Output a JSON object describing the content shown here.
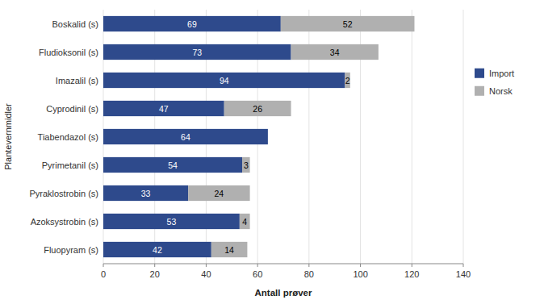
{
  "chart_data": {
    "type": "bar",
    "orientation": "horizontal",
    "stacked": true,
    "categories": [
      "Boskalid (s)",
      "Fludioksonil (s)",
      "Imazalil (s)",
      "Cyprodinil (s)",
      "Tiabendazol (s)",
      "Pyrimetanil (s)",
      "Pyraklostrobin (s)",
      "Azoksystrobin (s)",
      "Fluopyram (s)"
    ],
    "series": [
      {
        "name": "Import",
        "color": "#2E4A8C",
        "values": [
          69,
          73,
          94,
          47,
          64,
          54,
          33,
          53,
          42
        ]
      },
      {
        "name": "Norsk",
        "color": "#B0B0B0",
        "values": [
          52,
          34,
          2,
          26,
          0,
          3,
          24,
          4,
          14
        ]
      }
    ],
    "xlabel": "Antall prøver",
    "ylabel": "Plantevernmidler",
    "xlim": [
      0,
      140
    ],
    "xticks": [
      0,
      20,
      40,
      60,
      80,
      100,
      120,
      140
    ],
    "grid": true,
    "legend": "right",
    "data_labels": true
  }
}
